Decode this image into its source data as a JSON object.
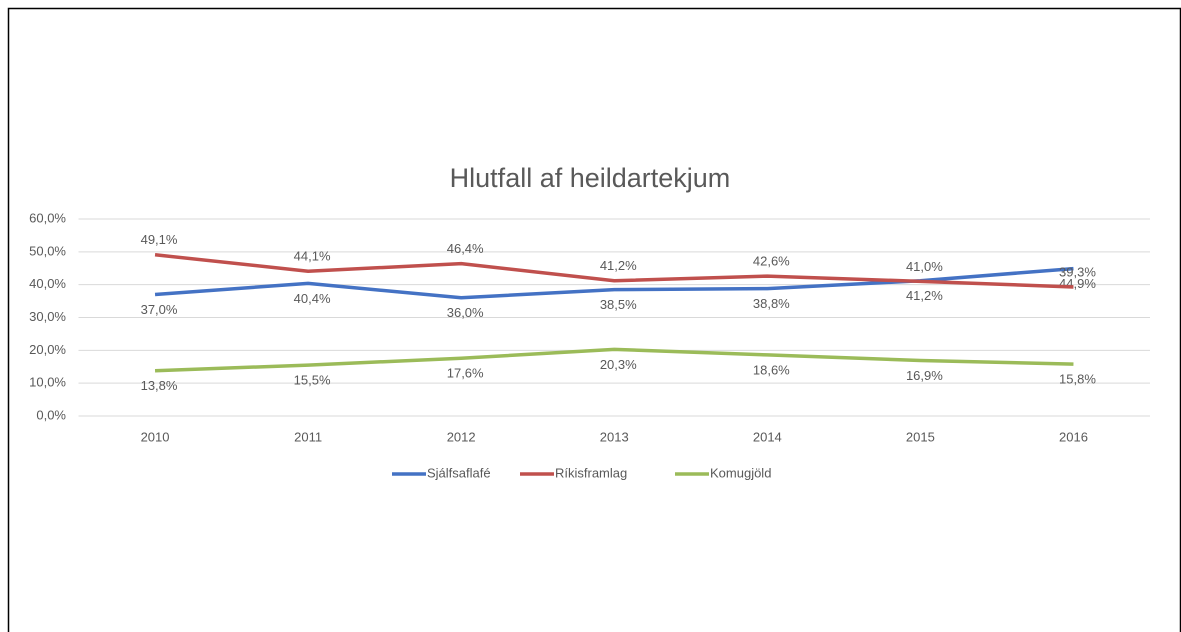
{
  "chart_data": {
    "type": "line",
    "title": "Hlutfall af heildartekjum",
    "categories": [
      "2010",
      "2011",
      "2012",
      "2013",
      "2014",
      "2015",
      "2016"
    ],
    "series": [
      {
        "name": "Sjálfsaflafé",
        "color": "#4472c4",
        "values": [
          37.0,
          40.4,
          36.0,
          38.5,
          38.8,
          41.2,
          44.9
        ],
        "value_labels": [
          "37,0%",
          "40,4%",
          "36,0%",
          "38,5%",
          "38,8%",
          "41,2%",
          "44,9%"
        ]
      },
      {
        "name": "Ríkisframlag",
        "color": "#c0504d",
        "values": [
          49.1,
          44.1,
          46.4,
          41.2,
          42.6,
          41.0,
          39.3
        ],
        "value_labels": [
          "49,1%",
          "44,1%",
          "46,4%",
          "41,2%",
          "42,6%",
          "41,0%",
          "39,3%"
        ]
      },
      {
        "name": "Komugjöld",
        "color": "#9bbb59",
        "values": [
          13.8,
          15.5,
          17.6,
          20.3,
          18.6,
          16.9,
          15.8
        ],
        "value_labels": [
          "13,8%",
          "15,5%",
          "17,6%",
          "20,3%",
          "18,6%",
          "16,9%",
          "15,8%"
        ]
      }
    ],
    "ylim": [
      0,
      60
    ],
    "yticks": [
      {
        "value": 0,
        "label": "0,0%"
      },
      {
        "value": 10,
        "label": "10,0%"
      },
      {
        "value": 20,
        "label": "20,0%"
      },
      {
        "value": 30,
        "label": "30,0%"
      },
      {
        "value": 40,
        "label": "40,0%"
      },
      {
        "value": 50,
        "label": "50,0%"
      },
      {
        "value": 60,
        "label": "60,0%"
      }
    ],
    "grid": true,
    "legend": "bottom"
  }
}
